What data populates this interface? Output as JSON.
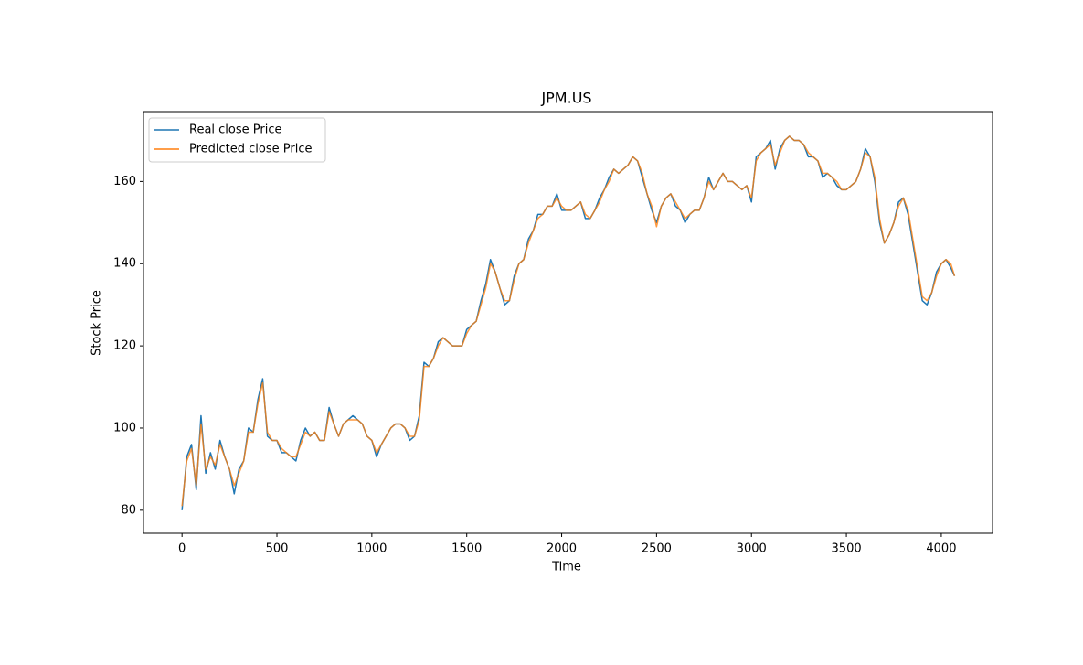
{
  "chart_data": {
    "type": "line",
    "title": "JPM.US",
    "xlabel": "Time",
    "ylabel": "Stock Price",
    "xlim": [
      -203,
      4270
    ],
    "ylim": [
      74.4,
      177.0
    ],
    "xticks": [
      0,
      500,
      1000,
      1500,
      2000,
      2500,
      3000,
      3500,
      4000
    ],
    "yticks": [
      80,
      100,
      120,
      140,
      160
    ],
    "legend": "upper left",
    "grid": false,
    "x": [
      0,
      25,
      50,
      75,
      100,
      125,
      150,
      175,
      200,
      225,
      250,
      275,
      300,
      325,
      350,
      375,
      400,
      425,
      450,
      475,
      500,
      525,
      550,
      575,
      600,
      625,
      650,
      675,
      700,
      725,
      750,
      775,
      800,
      825,
      850,
      875,
      900,
      925,
      950,
      975,
      1000,
      1025,
      1050,
      1075,
      1100,
      1125,
      1150,
      1175,
      1200,
      1225,
      1250,
      1275,
      1300,
      1325,
      1350,
      1375,
      1400,
      1425,
      1450,
      1475,
      1500,
      1525,
      1550,
      1575,
      1600,
      1625,
      1650,
      1675,
      1700,
      1725,
      1750,
      1775,
      1800,
      1825,
      1850,
      1875,
      1900,
      1925,
      1950,
      1975,
      2000,
      2025,
      2050,
      2075,
      2100,
      2125,
      2150,
      2175,
      2200,
      2225,
      2250,
      2275,
      2300,
      2325,
      2350,
      2375,
      2400,
      2425,
      2450,
      2475,
      2500,
      2525,
      2550,
      2575,
      2600,
      2625,
      2650,
      2675,
      2700,
      2725,
      2750,
      2775,
      2800,
      2825,
      2850,
      2875,
      2900,
      2925,
      2950,
      2975,
      3000,
      3025,
      3050,
      3075,
      3100,
      3125,
      3150,
      3175,
      3200,
      3225,
      3250,
      3275,
      3300,
      3325,
      3350,
      3375,
      3400,
      3425,
      3450,
      3475,
      3500,
      3525,
      3550,
      3575,
      3600,
      3625,
      3650,
      3675,
      3700,
      3725,
      3750,
      3775,
      3800,
      3825,
      3850,
      3875,
      3900,
      3925,
      3950,
      3975,
      4000,
      4025,
      4050,
      4070
    ],
    "series": [
      {
        "name": "Real close Price",
        "color": "#1f77b4",
        "values": [
          80,
          93,
          96,
          85,
          103,
          89,
          94,
          90,
          97,
          93,
          90,
          84,
          90,
          92,
          100,
          99,
          107,
          112,
          98,
          97,
          97,
          94,
          94,
          93,
          92,
          97,
          100,
          98,
          99,
          97,
          97,
          105,
          101,
          98,
          101,
          102,
          103,
          102,
          101,
          98,
          97,
          93,
          96,
          98,
          100,
          101,
          101,
          100,
          97,
          98,
          103,
          116,
          115,
          117,
          121,
          122,
          121,
          120,
          120,
          120,
          124,
          125,
          126,
          131,
          135,
          141,
          138,
          134,
          130,
          131,
          137,
          140,
          141,
          146,
          148,
          152,
          152,
          154,
          154,
          157,
          153,
          153,
          153,
          154,
          155,
          151,
          151,
          153,
          156,
          158,
          161,
          163,
          162,
          163,
          164,
          166,
          165,
          161,
          157,
          153,
          150,
          154,
          156,
          157,
          154,
          153,
          150,
          152,
          153,
          153,
          156,
          161,
          158,
          160,
          162,
          160,
          160,
          159,
          158,
          159,
          155,
          166,
          167,
          168,
          170,
          163,
          168,
          170,
          171,
          170,
          170,
          169,
          166,
          166,
          165,
          161,
          162,
          161,
          159,
          158,
          158,
          159,
          160,
          163,
          168,
          166,
          160,
          150,
          145,
          147,
          150,
          155,
          156,
          152,
          145,
          138,
          131,
          130,
          133,
          138,
          140,
          141,
          139,
          137
        ]
      },
      {
        "name": "Predicted close Price",
        "color": "#ff7f0e",
        "values": [
          81,
          92,
          95,
          86,
          101,
          90,
          93,
          91,
          96,
          93,
          90,
          86,
          89,
          92,
          99,
          99,
          106,
          111,
          99,
          97,
          97,
          95,
          94,
          93,
          93,
          96,
          99,
          98,
          99,
          97,
          97,
          104,
          101,
          98,
          101,
          102,
          102,
          102,
          101,
          98,
          97,
          94,
          96,
          98,
          100,
          101,
          101,
          100,
          98,
          98,
          102,
          115,
          115,
          117,
          120,
          122,
          121,
          120,
          120,
          120,
          123,
          125,
          126,
          130,
          134,
          140,
          138,
          134,
          131,
          131,
          136,
          140,
          141,
          145,
          148,
          151,
          152,
          154,
          154,
          156,
          154,
          153,
          153,
          154,
          155,
          152,
          151,
          153,
          155,
          158,
          160,
          163,
          162,
          163,
          164,
          166,
          165,
          162,
          157,
          154,
          149,
          154,
          156,
          157,
          155,
          153,
          151,
          152,
          153,
          153,
          156,
          160,
          158,
          160,
          162,
          160,
          160,
          159,
          158,
          159,
          156,
          165,
          167,
          168,
          169,
          164,
          167,
          170,
          171,
          170,
          170,
          169,
          167,
          166,
          165,
          162,
          162,
          161,
          160,
          158,
          158,
          159,
          160,
          163,
          167,
          166,
          161,
          151,
          145,
          147,
          150,
          154,
          156,
          153,
          146,
          139,
          132,
          131,
          133,
          137,
          140,
          141,
          140,
          137
        ]
      }
    ]
  }
}
